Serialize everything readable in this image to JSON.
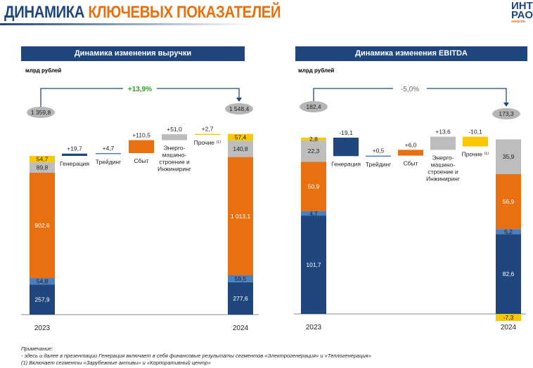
{
  "header": {
    "title_part1": "ДИНАМИКА",
    "title_part2": "КЛЮЧЕВЫХ ПОКАЗАТЕЛЕЙ",
    "logo": "ИНТЕР РАО",
    "logo_tagline": "энергия без границ"
  },
  "colors": {
    "generation": "#1f477d",
    "trading": "#4a7fc1",
    "sales": "#e8700f",
    "engineering": "#bdbdbd",
    "other": "#f9c800",
    "positive_change": "#2e9e2e",
    "neutral_change": "#666666"
  },
  "chart_data": [
    {
      "type": "waterfall",
      "title": "Динамика изменения выручки",
      "unit": "млрд рублей",
      "start": {
        "label": "2023",
        "total": "1 359,8",
        "stack": [
          257.9,
          54.8,
          902.6,
          89.8,
          54.7
        ],
        "stack_labels": [
          "257,9",
          "54,8",
          "902,6",
          "89,8",
          "54,7"
        ]
      },
      "steps": [
        {
          "label": "Генерация",
          "value": 19.7,
          "text": "+19,7"
        },
        {
          "label": "Трейдинг",
          "value": 4.7,
          "text": "+4,7"
        },
        {
          "label": "Сбыт",
          "value": 110.5,
          "text": "+110,5"
        },
        {
          "label": "Энерго-\nмашино-\nстроение и\nИнжиниринг",
          "value": 51.0,
          "text": "+51,0"
        },
        {
          "label": "Прочие ⁽¹⁾",
          "value": 2.7,
          "text": "+2,7"
        }
      ],
      "end": {
        "label": "2024",
        "total": "1 548,4",
        "stack": [
          277.6,
          59.5,
          1013.1,
          140.8,
          57.4
        ],
        "stack_labels": [
          "277,6",
          "59,5",
          "1 013,1",
          "140,8",
          "57,4"
        ]
      },
      "change": "+13,9%"
    },
    {
      "type": "waterfall",
      "title": "Динамика изменения EBITDA",
      "unit": "млрд рублей",
      "start": {
        "label": "2023",
        "total": "182,4",
        "stack": [
          101.7,
          4.7,
          50.9,
          22.3,
          2.8
        ],
        "stack_labels": [
          "101,7",
          "4,7",
          "50,9",
          "22,3",
          "2,8"
        ]
      },
      "steps": [
        {
          "label": "Генерация",
          "value": -19.1,
          "text": "-19,1"
        },
        {
          "label": "Трейдинг",
          "value": 0.5,
          "text": "+0,5"
        },
        {
          "label": "Сбыт",
          "value": 6.0,
          "text": "+6,0"
        },
        {
          "label": "Энерго-\nмашино-\nстроение и\nИнжиниринг",
          "value": 13.6,
          "text": "+13,6"
        },
        {
          "label": "Прочие ⁽¹⁾",
          "value": -10.1,
          "text": "-10,1"
        }
      ],
      "end": {
        "label": "2024",
        "total": "173,3",
        "stack": [
          82.6,
          5.2,
          56.9,
          35.9,
          -7.3
        ],
        "stack_labels": [
          "82,6",
          "5,2",
          "56,9",
          "35,9",
          "-7,3"
        ]
      },
      "change": "-5,0%"
    }
  ],
  "notes": {
    "heading": "Примечание:",
    "line1": "- здесь и далее  в презентации Генерация включает в себя финансовые результаты сегментов «Электрогенерация» и «Теплогенерация»",
    "line2": "(1)    Включает сегменты «Зарубежные активы» и «Корпоративный центр»"
  }
}
